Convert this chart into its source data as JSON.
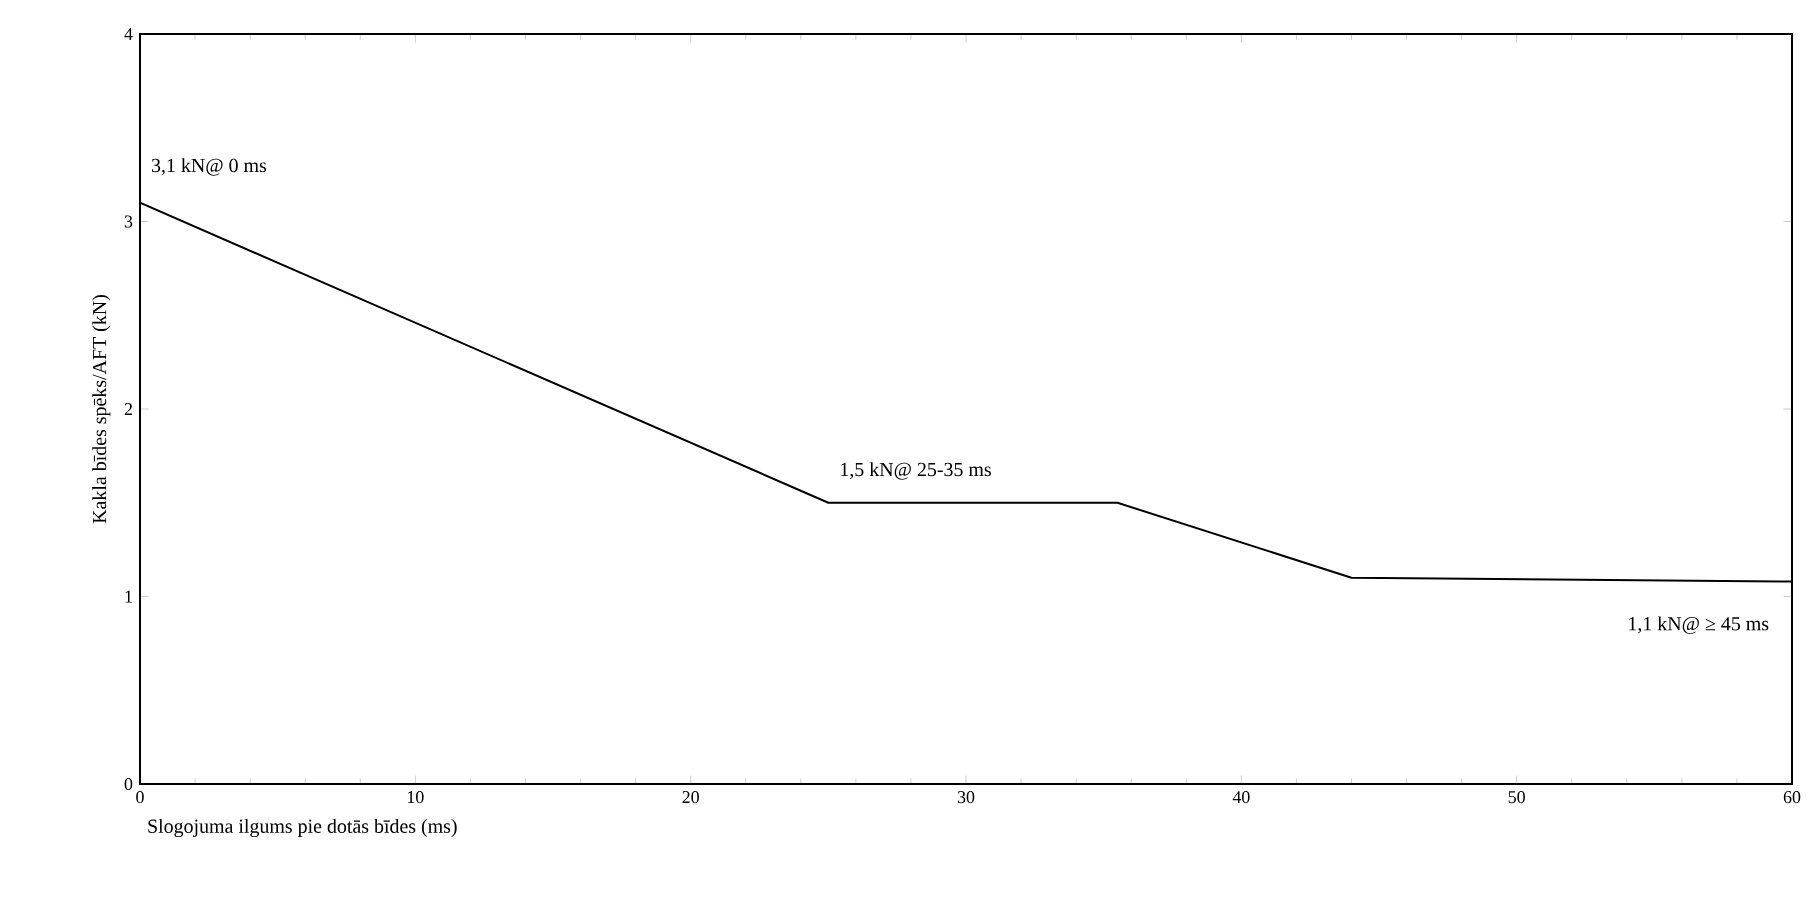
{
  "chart_data": {
    "type": "line",
    "xlabel": "Slogojuma ilgums pie dotās bīdes (ms)",
    "ylabel": "Kakla bīdes spēks/AFT (kN)",
    "x": [
      0,
      25,
      35.5,
      44,
      60
    ],
    "series": [
      {
        "color": "#000000",
        "values": [
          3.1,
          1.5,
          1.5,
          1.1,
          1.08
        ]
      }
    ],
    "xlim": [
      0,
      60
    ],
    "ylim": [
      0,
      4
    ],
    "xticks": [
      0,
      10,
      20,
      30,
      40,
      50,
      60
    ],
    "yticks": [
      0,
      1,
      2,
      3,
      4
    ],
    "grid": false,
    "marker": "none",
    "line_style": "solid",
    "annotations": [
      {
        "text": "3,1 kN@ 0 ms",
        "x": 0,
        "y": 3.1
      },
      {
        "text": "1,5 kN@ 25-35 ms",
        "x": 25,
        "y": 1.5
      },
      {
        "text": "1,1 kN@ ≥ 45 ms",
        "x": 60,
        "y": 1.08
      }
    ]
  }
}
